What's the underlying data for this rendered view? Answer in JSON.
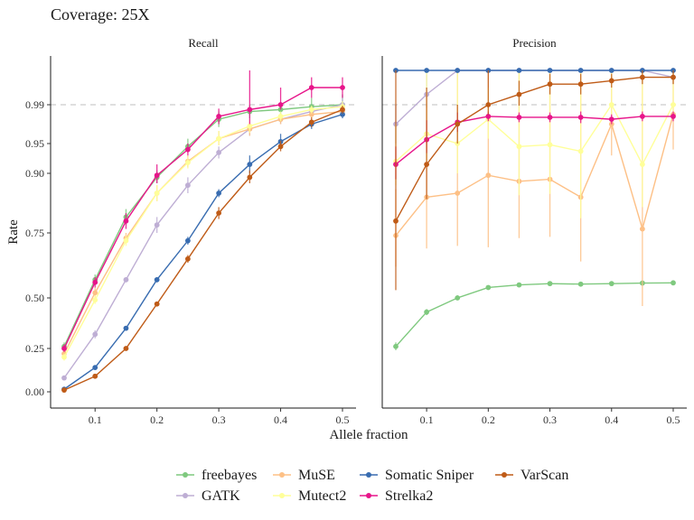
{
  "title": "Coverage: 25X",
  "chart_data": {
    "type": "line",
    "xlabel": "Allele fraction",
    "ylabel": "Rate",
    "x_ticks": [
      0.1,
      0.2,
      0.3,
      0.4,
      0.5
    ],
    "y_ticks": [
      0.0,
      0.25,
      0.5,
      0.75,
      0.9,
      0.95,
      0.99
    ],
    "y_tick_labels": [
      "0.00",
      "0.25",
      "0.50",
      "0.75",
      "0.90",
      "0.95",
      "0.99"
    ],
    "y_scale": "stretched near 1 (sqrt-like)",
    "reference_line": 0.99,
    "legend_position": "bottom",
    "x": [
      0.05,
      0.1,
      0.15,
      0.2,
      0.25,
      0.3,
      0.35,
      0.4,
      0.45,
      0.5
    ],
    "series_styles": [
      {
        "name": "freebayes",
        "color": "#7fc97f"
      },
      {
        "name": "GATK",
        "color": "#beaed4"
      },
      {
        "name": "MuSE",
        "color": "#fdc086"
      },
      {
        "name": "Mutect2",
        "color": "#ffff99"
      },
      {
        "name": "Somatic Sniper",
        "color": "#386cb0"
      },
      {
        "name": "Strelka2",
        "color": "#e7158a"
      },
      {
        "name": "VarScan",
        "color": "#bf5b17"
      }
    ],
    "panels": [
      {
        "label": "Recall",
        "series": [
          {
            "name": "freebayes",
            "values": [
              0.26,
              0.57,
              0.79,
              0.89,
              0.945,
              0.975,
              0.983,
              0.985,
              0.988,
              0.99
            ],
            "err": [
              0.02,
              0.02,
              0.02,
              0.015,
              0.01,
              0.008,
              0.007,
              0.005,
              0.004,
              0.003
            ]
          },
          {
            "name": "GATK",
            "values": [
              0.08,
              0.32,
              0.57,
              0.77,
              0.87,
              0.935,
              0.965,
              0.975,
              0.983,
              0.99
            ],
            "err": [
              0.01,
              0.02,
              0.01,
              0.02,
              0.02,
              0.01,
              0.007,
              0.005,
              0.004,
              0.003
            ]
          },
          {
            "name": "MuSE",
            "values": [
              0.22,
              0.52,
              0.73,
              0.85,
              0.92,
              0.955,
              0.965,
              0.975,
              0.98,
              0.983
            ],
            "err": [
              0.02,
              0.02,
              0.02,
              0.02,
              0.01,
              0.008,
              0.007,
              0.005,
              0.004,
              0.003
            ]
          },
          {
            "name": "Mutect2",
            "values": [
              0.2,
              0.49,
              0.72,
              0.85,
              0.918,
              0.955,
              0.968,
              0.978,
              0.985,
              0.988
            ],
            "err": [
              0.02,
              0.02,
              0.02,
              0.02,
              0.01,
              0.008,
              0.007,
              0.005,
              0.004,
              0.003
            ]
          },
          {
            "name": "Somatic Sniper",
            "values": [
              0.015,
              0.14,
              0.35,
              0.57,
              0.72,
              0.85,
              0.915,
              0.952,
              0.97,
              0.98
            ],
            "err": [
              0.005,
              0.01,
              0.01,
              0.01,
              0.015,
              0.01,
              0.015,
              0.008,
              0.005,
              0.004
            ]
          },
          {
            "name": "Strelka2",
            "values": [
              0.25,
              0.56,
              0.78,
              0.895,
              0.94,
              0.978,
              0.985,
              0.99,
              0.995,
              0.995
            ],
            "err": [
              0.02,
              0.02,
              0.02,
              0.02,
              0.01,
              0.008,
              0.015,
              0.005,
              0.003,
              0.003
            ]
          },
          {
            "name": "VarScan",
            "values": [
              0.01,
              0.09,
              0.25,
              0.47,
              0.65,
              0.8,
              0.89,
              0.945,
              0.972,
              0.985
            ],
            "err": [
              0.005,
              0.01,
              0.01,
              0.01,
              0.015,
              0.015,
              0.015,
              0.008,
              0.005,
              0.004
            ]
          }
        ]
      },
      {
        "label": "Precision",
        "series": [
          {
            "name": "freebayes",
            "values": [
              0.26,
              0.43,
              0.5,
              0.54,
              0.55,
              0.555,
              0.553,
              0.555,
              0.557,
              0.558
            ],
            "err": [
              0.02,
              0.015,
              0.01,
              0.008,
              0.008,
              0.008,
              0.008,
              0.008,
              0.008,
              0.008
            ]
          },
          {
            "name": "GATK",
            "values": [
              0.97,
              0.993,
              1.0,
              1.0,
              1.0,
              1.0,
              1.0,
              1.0,
              1.0,
              0.998
            ],
            "err": [
              0.02,
              0.006,
              0.0,
              0.0,
              0.0,
              0.0,
              0.0,
              0.0,
              0.0,
              0.002
            ]
          },
          {
            "name": "MuSE",
            "values": [
              0.74,
              0.84,
              0.85,
              0.895,
              0.88,
              0.885,
              0.84,
              0.97,
              0.76,
              0.98
            ],
            "err": [
              0.12,
              0.15,
              0.15,
              0.2,
              0.15,
              0.15,
              0.2,
              0.04,
              0.3,
              0.04
            ]
          },
          {
            "name": "Mutect2",
            "values": [
              0.92,
              0.96,
              0.95,
              0.975,
              0.945,
              0.948,
              0.937,
              0.99,
              0.915,
              0.99
            ],
            "err": [
              0.05,
              0.04,
              0.05,
              0.02,
              0.1,
              0.1,
              0.15,
              0.01,
              0.1,
              0.01
            ]
          },
          {
            "name": "Somatic Sniper",
            "values": [
              1.0,
              1.0,
              1.0,
              1.0,
              1.0,
              1.0,
              1.0,
              1.0,
              1.0,
              1.0
            ],
            "err": [
              0.0,
              0.0,
              0.0,
              0.0,
              0.0,
              0.0,
              0.0,
              0.0,
              0.0,
              0.0
            ]
          },
          {
            "name": "Strelka2",
            "values": [
              0.915,
              0.954,
              0.972,
              0.978,
              0.977,
              0.977,
              0.977,
              0.975,
              0.978,
              0.978
            ],
            "err": [
              0.03,
              0.02,
              0.01,
              0.005,
              0.005,
              0.005,
              0.006,
              0.005,
              0.005,
              0.005
            ]
          },
          {
            "name": "VarScan",
            "values": [
              0.78,
              0.915,
              0.97,
              0.99,
              0.993,
              0.996,
              0.996,
              0.997,
              0.998,
              0.998
            ],
            "err": [
              0.25,
              0.08,
              0.02,
              0.01,
              0.004,
              0.003,
              0.003,
              0.002,
              0.002,
              0.002
            ]
          }
        ]
      }
    ]
  }
}
